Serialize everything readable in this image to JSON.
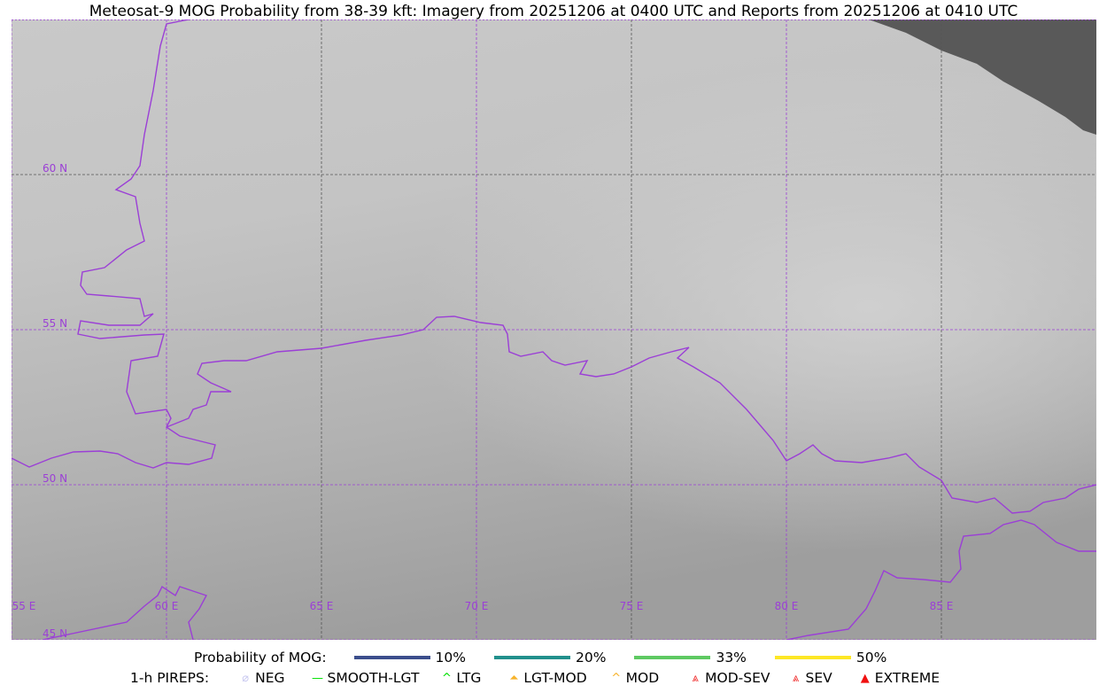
{
  "title": "Meteosat-9 MOG Probability from 38-39 kft: Imagery from 20251206 at 0400 UTC and Reports from 20251206 at 0410 UTC",
  "map": {
    "lon_labels": [
      "55 E",
      "60 E",
      "65 E",
      "70 E",
      "75 E",
      "80 E",
      "85 E"
    ],
    "lat_labels": [
      "60 N",
      "55 N",
      "50 N",
      "45 N"
    ],
    "border_color": "#9b3fd6",
    "nodata_color": "#595959"
  },
  "legend": {
    "prob_label": "Probability of MOG:",
    "prob_items": [
      {
        "label": "10%",
        "color": "#3b4e8c"
      },
      {
        "label": "20%",
        "color": "#21908c"
      },
      {
        "label": "33%",
        "color": "#5ec962"
      },
      {
        "label": "50%",
        "color": "#fde725"
      }
    ],
    "pirep_label": "1-h PIREPS:",
    "pirep_items": [
      {
        "label": "NEG",
        "icon": "neg-circle-slash-icon",
        "color": "#c8c8f0"
      },
      {
        "label": "SMOOTH-LGT",
        "icon": "line-icon",
        "color": "#00e000"
      },
      {
        "label": "LTG",
        "icon": "caret-icon",
        "color": "#00e000"
      },
      {
        "label": "LGT-MOD",
        "icon": "caret-underline-icon",
        "color": "#f7b32b"
      },
      {
        "label": "MOD",
        "icon": "caret-icon",
        "color": "#f7b32b"
      },
      {
        "label": "MOD-SEV",
        "icon": "double-caret-icon",
        "color": "#f03030"
      },
      {
        "label": "SEV",
        "icon": "double-caret-icon",
        "color": "#f03030"
      },
      {
        "label": "EXTREME",
        "icon": "filled-triangle-icon",
        "color": "#f01010"
      }
    ]
  }
}
